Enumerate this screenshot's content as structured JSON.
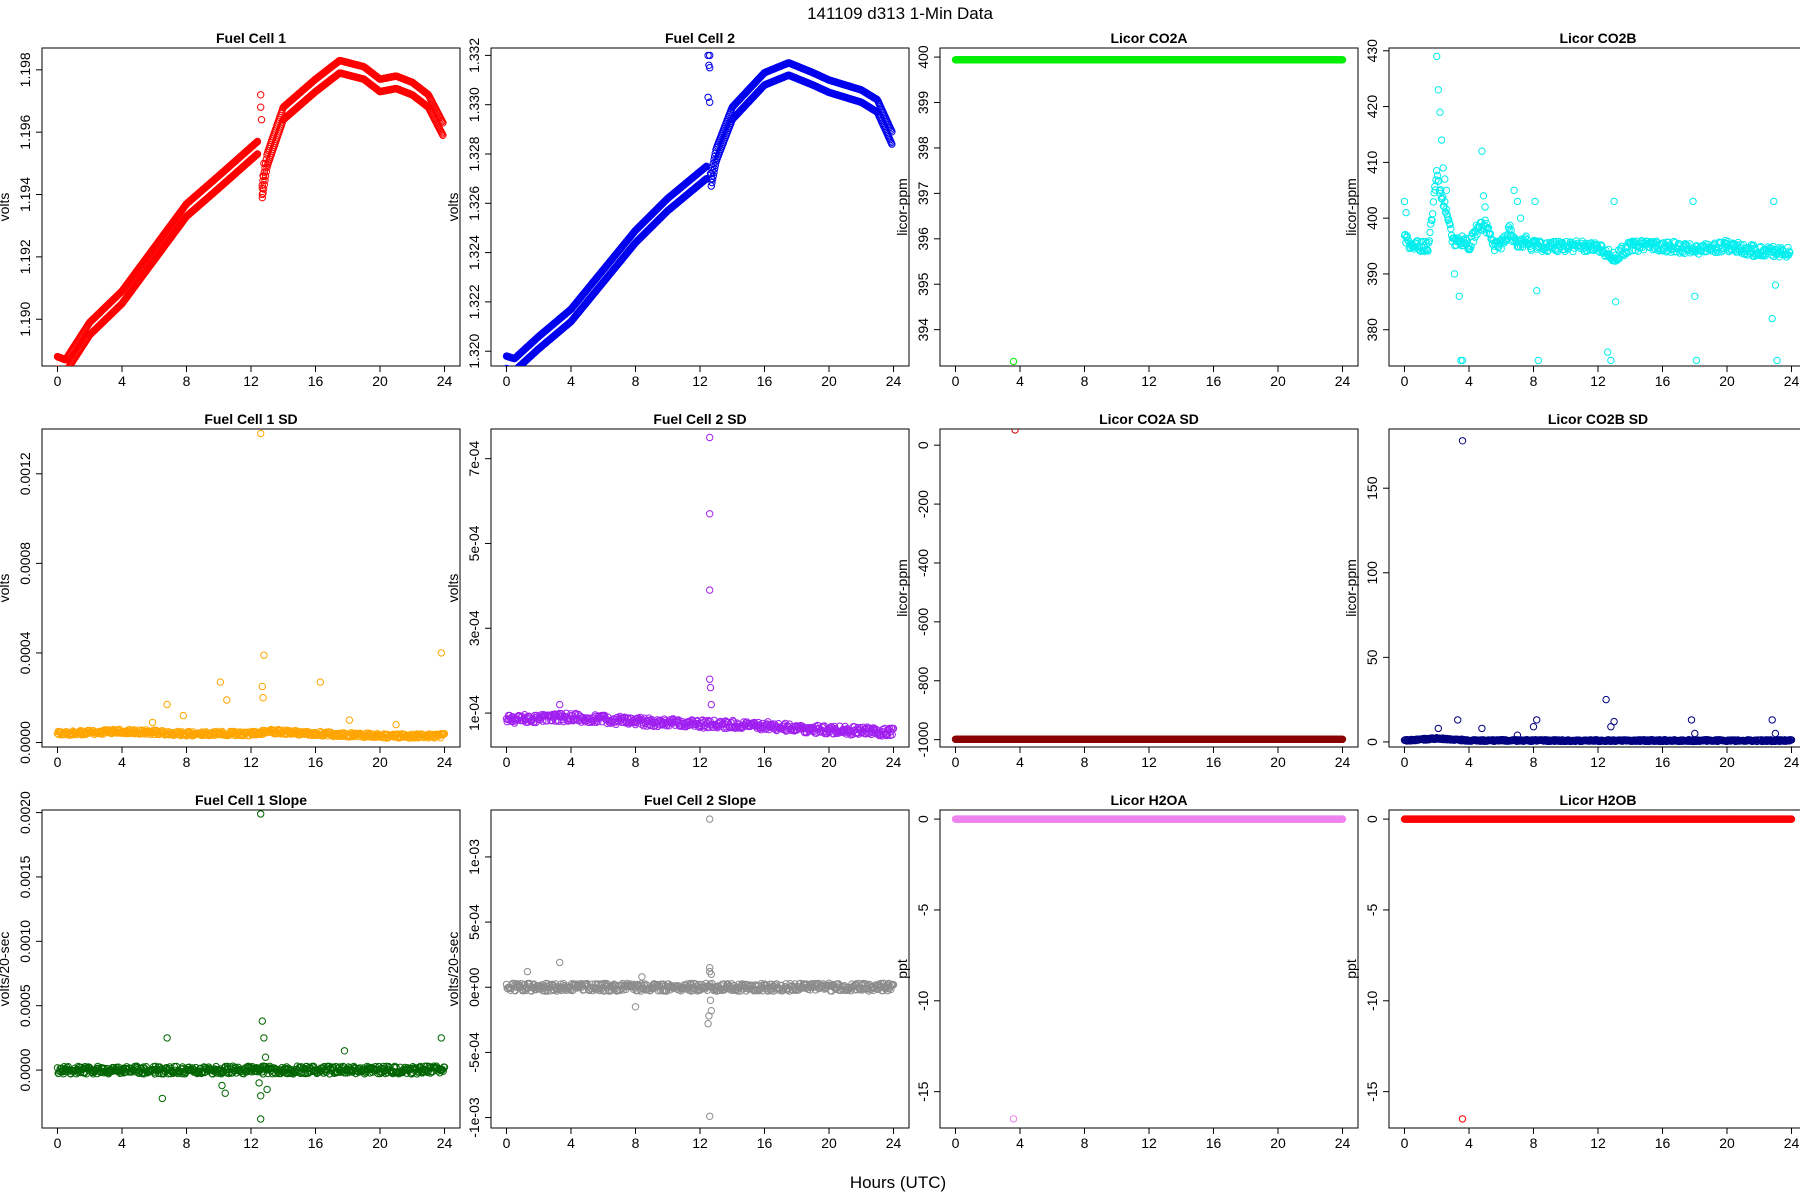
{
  "figure": {
    "title": "141109   d313   1-Min Data",
    "xlabel": "Hours (UTC)"
  },
  "chart_data": [
    {
      "type": "scatter",
      "title": "Fuel Cell 1",
      "ylabel": "volts",
      "xlim": [
        0,
        24
      ],
      "xticks": [
        0,
        4,
        8,
        12,
        16,
        20,
        24
      ],
      "ylim": [
        1.1885,
        1.1987
      ],
      "yticks": [
        1.19,
        1.192,
        1.194,
        1.196,
        1.198
      ],
      "ytick_labels": [
        "1.190",
        "1.192",
        "1.194",
        "1.196",
        "1.198"
      ],
      "color": "#ff0000",
      "series": [
        {
          "kind": "band",
          "x": [
            0,
            0.5,
            2,
            4,
            6,
            8,
            10,
            12.4
          ],
          "y": [
            1.1888,
            1.1887,
            1.1899,
            1.1909,
            1.1923,
            1.1937,
            1.1946,
            1.1957
          ],
          "offset": 0.0004
        },
        {
          "kind": "band",
          "x": [
            12.7,
            13,
            14,
            16,
            17.5,
            19,
            20,
            21,
            22,
            23,
            23.9
          ],
          "y": [
            1.1943,
            1.1953,
            1.1968,
            1.1977,
            1.1983,
            1.1981,
            1.1977,
            1.1978,
            1.1976,
            1.1972,
            1.1963
          ],
          "offset": 0.0004
        },
        {
          "kind": "points",
          "x": [
            12.6,
            12.6,
            12.65,
            12.7,
            12.7,
            12.75,
            12.8
          ],
          "y": [
            1.1972,
            1.1968,
            1.1964,
            1.1942,
            1.194,
            1.1946,
            1.195
          ]
        }
      ]
    },
    {
      "type": "scatter",
      "title": "Fuel Cell 2",
      "ylabel": "volts",
      "xlim": [
        0,
        24
      ],
      "xticks": [
        0,
        4,
        8,
        12,
        16,
        20,
        24
      ],
      "ylim": [
        1.3194,
        1.3323
      ],
      "yticks": [
        1.32,
        1.322,
        1.324,
        1.326,
        1.328,
        1.33,
        1.332
      ],
      "ytick_labels": [
        "1.320",
        "1.322",
        "1.324",
        "1.326",
        "1.328",
        "1.330",
        "1.332"
      ],
      "color": "#0000ee",
      "series": [
        {
          "kind": "band",
          "x": [
            0,
            0.5,
            2,
            4,
            6,
            8,
            10,
            12.4
          ],
          "y": [
            1.3198,
            1.3197,
            1.3206,
            1.3217,
            1.3233,
            1.3249,
            1.3262,
            1.3275
          ],
          "offset": 0.0005
        },
        {
          "kind": "band",
          "x": [
            12.7,
            13,
            14,
            16,
            17.5,
            19,
            20,
            21,
            22,
            23,
            23.9
          ],
          "y": [
            1.3272,
            1.3282,
            1.3299,
            1.3313,
            1.3317,
            1.3313,
            1.331,
            1.3308,
            1.3306,
            1.3302,
            1.3289
          ],
          "offset": 0.0005
        },
        {
          "kind": "points",
          "x": [
            12.5,
            12.6,
            12.55,
            12.6,
            12.5,
            12.6,
            12.65,
            12.7
          ],
          "y": [
            1.332,
            1.332,
            1.3316,
            1.3315,
            1.3303,
            1.3301,
            1.3272,
            1.327
          ]
        }
      ]
    },
    {
      "type": "scatter",
      "title": "Licor CO2A",
      "ylabel": "licor-ppm",
      "xlim": [
        0,
        24
      ],
      "xticks": [
        0,
        4,
        8,
        12,
        16,
        20,
        24
      ],
      "ylim": [
        393.2,
        400.2
      ],
      "yticks": [
        394,
        395,
        396,
        397,
        398,
        399,
        400
      ],
      "ytick_labels": [
        "394",
        "395",
        "396",
        "397",
        "398",
        "399",
        "400"
      ],
      "color": "#00ee00",
      "series": [
        {
          "kind": "band",
          "x": [
            0,
            24
          ],
          "y": [
            399.94,
            399.94
          ],
          "offset": 0.0
        },
        {
          "kind": "points",
          "x": [
            3.6
          ],
          "y": [
            393.3
          ]
        }
      ]
    },
    {
      "type": "scatter",
      "title": "Licor CO2B",
      "ylabel": "licor-ppm",
      "xlim": [
        0,
        24
      ],
      "xticks": [
        0,
        4,
        8,
        12,
        16,
        20,
        24
      ],
      "ylim": [
        373.5,
        430.5
      ],
      "yticks": [
        380,
        390,
        400,
        410,
        420,
        430
      ],
      "ytick_labels": [
        "380",
        "390",
        "400",
        "410",
        "420",
        "430"
      ],
      "color": "#00eeee",
      "series": [
        {
          "kind": "band",
          "x": [
            0,
            0.3,
            0.6,
            1,
            1.5,
            2,
            2.3,
            2.6,
            3,
            3.5,
            4,
            4.5,
            5,
            5.5,
            6,
            6.5,
            7,
            7.5,
            8,
            9,
            10,
            11,
            12,
            12.5,
            13,
            14,
            16,
            18,
            20,
            22,
            23.9
          ],
          "y": [
            397,
            395,
            395,
            395,
            395,
            408,
            404,
            401,
            396,
            396,
            395,
            398,
            399,
            395,
            395,
            398,
            395,
            396,
            395,
            395,
            395,
            395,
            395,
            394,
            393,
            395,
            395,
            394.5,
            395,
            394,
            394
          ],
          "offset": 1.0
        },
        {
          "kind": "points",
          "x": [
            0,
            0.1,
            2.0,
            2.1,
            2.2,
            2.3,
            2.4,
            2.5,
            2.6,
            3.1,
            3.4,
            3.5,
            3.6,
            4.8,
            4.9,
            5.0,
            5.1,
            6.8,
            7.0,
            7.2,
            8.1,
            8.2,
            8.3,
            12.6,
            12.8,
            13.0,
            13.1,
            17.9,
            18.0,
            18.1,
            22.9,
            23.0,
            23.1,
            22.8
          ],
          "y": [
            403,
            401,
            429,
            423,
            419,
            414,
            409,
            407,
            405,
            390,
            386,
            374.5,
            374.5,
            412,
            404,
            402,
            399,
            405,
            403,
            400,
            403,
            387,
            374.5,
            376,
            374.5,
            403,
            385,
            403,
            386,
            374.5,
            403,
            388,
            374.5,
            382
          ]
        }
      ]
    },
    {
      "type": "scatter",
      "title": "Fuel Cell 1 SD",
      "ylabel": "volts",
      "xlim": [
        0,
        24
      ],
      "xticks": [
        0,
        4,
        8,
        12,
        16,
        20,
        24
      ],
      "ylim": [
        -2e-05,
        0.0014
      ],
      "yticks": [
        0.0,
        0.0004,
        0.0008,
        0.0012
      ],
      "ytick_labels": [
        "0.0000",
        "0.0004",
        "0.0008",
        "0.0012"
      ],
      "color": "#ffa500",
      "series": [
        {
          "kind": "band",
          "x": [
            0,
            4,
            8,
            12,
            12.5,
            13,
            16,
            20,
            24
          ],
          "y": [
            4e-05,
            5e-05,
            4e-05,
            4e-05,
            4e-05,
            5e-05,
            4e-05,
            3e-05,
            3e-05
          ],
          "offset": 1e-05
        },
        {
          "kind": "points",
          "x": [
            12.6,
            12.8,
            12.7,
            12.75,
            10.1,
            6.8,
            10.5,
            16.3,
            23.8,
            7.8,
            18.1,
            21.0,
            5.9
          ],
          "y": [
            0.00138,
            0.00039,
            0.00025,
            0.0002,
            0.00027,
            0.00017,
            0.00019,
            0.00027,
            0.0004,
            0.00012,
            0.0001,
            8e-05,
            9e-05
          ]
        }
      ]
    },
    {
      "type": "scatter",
      "title": "Fuel Cell 2 SD",
      "ylabel": "volts",
      "xlim": [
        0,
        24
      ],
      "xticks": [
        0,
        4,
        8,
        12,
        16,
        20,
        24
      ],
      "ylim": [
        2e-05,
        0.00077
      ],
      "yticks": [
        0.0001,
        0.0003,
        0.0005,
        0.0007
      ],
      "ytick_labels": [
        "1e-04",
        "3e-04",
        "5e-04",
        "7e-04"
      ],
      "color": "#a020f0",
      "series": [
        {
          "kind": "band",
          "x": [
            0,
            4,
            8,
            12,
            16,
            20,
            24
          ],
          "y": [
            8.5e-05,
            9e-05,
            8e-05,
            7.5e-05,
            7e-05,
            6e-05,
            5.5e-05
          ],
          "offset": 1e-05
        },
        {
          "kind": "points",
          "x": [
            12.6,
            12.6,
            12.6,
            12.6,
            12.65,
            12.7,
            3.3
          ],
          "y": [
            0.00075,
            0.00057,
            0.00039,
            0.00018,
            0.00016,
            0.00012,
            0.00012
          ]
        }
      ]
    },
    {
      "type": "scatter",
      "title": "Licor CO2A SD",
      "ylabel": "licor-ppm",
      "xlim": [
        0,
        24
      ],
      "xticks": [
        0,
        4,
        8,
        12,
        16,
        20,
        24
      ],
      "ylim": [
        -1025,
        55
      ],
      "yticks": [
        -1000,
        -800,
        -600,
        -400,
        -200,
        0
      ],
      "ytick_labels": [
        "-1000",
        "-800",
        "-600",
        "-400",
        "-200",
        "0"
      ],
      "color": "#8b0000",
      "series": [
        {
          "kind": "band",
          "x": [
            0,
            24
          ],
          "y": [
            -999,
            -999
          ],
          "offset": 0.0
        },
        {
          "kind": "points",
          "x": [
            3.7
          ],
          "y": [
            52
          ],
          "color": "#cd0000"
        }
      ]
    },
    {
      "type": "scatter",
      "title": "Licor CO2B SD",
      "ylabel": "licor-ppm",
      "xlim": [
        0,
        24
      ],
      "xticks": [
        0,
        4,
        8,
        12,
        16,
        20,
        24
      ],
      "ylim": [
        -3,
        185
      ],
      "yticks": [
        0,
        50,
        100,
        150
      ],
      "ytick_labels": [
        "0",
        "50",
        "100",
        "150"
      ],
      "color": "#000080",
      "series": [
        {
          "kind": "band",
          "x": [
            0,
            2,
            3,
            4,
            6,
            8,
            12,
            16,
            20,
            24
          ],
          "y": [
            0.8,
            2,
            1.5,
            0.8,
            0.8,
            0.8,
            0.8,
            0.8,
            0.8,
            0.8
          ],
          "offset": 0.5
        },
        {
          "kind": "points",
          "x": [
            3.6,
            12.5,
            3.3,
            2.1,
            8.2,
            8.0,
            13.0,
            17.8,
            22.8,
            23.0,
            12.8,
            18.0,
            4.8,
            7.0
          ],
          "y": [
            178,
            25,
            13,
            8,
            13,
            9,
            12,
            13,
            13,
            5,
            9,
            5,
            8,
            4
          ]
        }
      ]
    },
    {
      "type": "scatter",
      "title": "Fuel Cell 1 Slope",
      "ylabel": "volts/20-sec",
      "xlim": [
        0,
        24
      ],
      "xticks": [
        0,
        4,
        8,
        12,
        16,
        20,
        24
      ],
      "ylim": [
        -0.00045,
        0.00202
      ],
      "yticks": [
        0.0,
        0.0005,
        0.001,
        0.0015,
        0.002
      ],
      "ytick_labels": [
        "0.0000",
        "0.0005",
        "0.0010",
        "0.0015",
        "0.0020"
      ],
      "color": "#006400",
      "series": [
        {
          "kind": "band",
          "x": [
            0,
            24
          ],
          "y": [
            0.0,
            0.0
          ],
          "offset": 3e-05
        },
        {
          "kind": "points",
          "x": [
            12.6,
            12.7,
            12.8,
            12.6,
            6.8,
            23.8,
            6.5,
            10.2,
            10.4,
            12.9,
            13.0,
            17.8,
            12.5,
            12.6
          ],
          "y": [
            0.00199,
            0.00038,
            0.00025,
            -0.00038,
            0.00025,
            0.00025,
            -0.00022,
            -0.00012,
            -0.00018,
            0.0001,
            -0.00015,
            0.00015,
            -0.0001,
            -0.0002
          ]
        }
      ]
    },
    {
      "type": "scatter",
      "title": "Fuel Cell 2 Slope",
      "ylabel": "volts/20-sec",
      "xlim": [
        0,
        24
      ],
      "xticks": [
        0,
        4,
        8,
        12,
        16,
        20,
        24
      ],
      "ylim": [
        -0.00108,
        0.00136
      ],
      "yticks": [
        -0.001,
        -0.0005,
        0.0,
        0.0005,
        0.001
      ],
      "ytick_labels": [
        "-1e-03",
        "-5e-04",
        "0e+00",
        "5e-04",
        "1e-03"
      ],
      "color": "#8c8c8c",
      "series": [
        {
          "kind": "band",
          "x": [
            0,
            24
          ],
          "y": [
            0.0,
            0.0
          ],
          "offset": 3e-05
        },
        {
          "kind": "points",
          "x": [
            12.6,
            12.6,
            12.5,
            12.55,
            12.6,
            12.65,
            12.7,
            3.3,
            8.0,
            8.4,
            1.3,
            12.6,
            12.7
          ],
          "y": [
            0.00129,
            -0.00099,
            -0.00028,
            -0.00022,
            0.00015,
            -0.0001,
            0.0001,
            0.00019,
            -0.00015,
            8e-05,
            0.00012,
            0.00012,
            -0.00018
          ]
        }
      ]
    },
    {
      "type": "scatter",
      "title": "Licor H2OA",
      "ylabel": "ppt",
      "xlim": [
        0,
        24
      ],
      "xticks": [
        0,
        4,
        8,
        12,
        16,
        20,
        24
      ],
      "ylim": [
        -17.0,
        0.5
      ],
      "yticks": [
        -15,
        -10,
        -5,
        0
      ],
      "ytick_labels": [
        "-15",
        "-10",
        "-5",
        "0"
      ],
      "color": "#ee82ee",
      "series": [
        {
          "kind": "band",
          "x": [
            0,
            24
          ],
          "y": [
            0.0,
            0.0
          ],
          "offset": 0.0
        },
        {
          "kind": "points",
          "x": [
            3.6
          ],
          "y": [
            -16.5
          ]
        }
      ]
    },
    {
      "type": "scatter",
      "title": "Licor H2OB",
      "ylabel": "ppt",
      "xlim": [
        0,
        24
      ],
      "xticks": [
        0,
        4,
        8,
        12,
        16,
        20,
        24
      ],
      "ylim": [
        -17.0,
        0.5
      ],
      "yticks": [
        -15,
        -10,
        -5,
        0
      ],
      "ytick_labels": [
        "-15",
        "-10",
        "-5",
        "0"
      ],
      "color": "#ff0000",
      "series": [
        {
          "kind": "band",
          "x": [
            0,
            24
          ],
          "y": [
            0.0,
            0.0
          ],
          "offset": 0.0
        },
        {
          "kind": "points",
          "x": [
            3.6
          ],
          "y": [
            -16.5
          ]
        }
      ]
    }
  ]
}
